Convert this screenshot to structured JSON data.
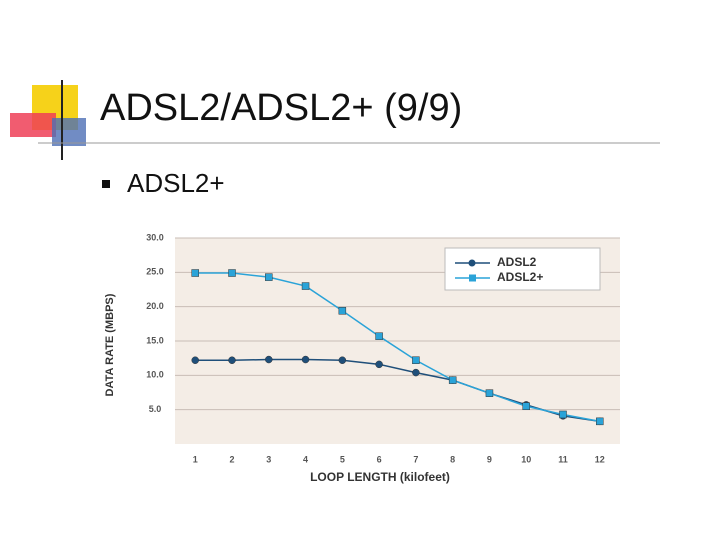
{
  "slide": {
    "title": "ADSL2/ADSL2+ (9/9)",
    "bullet": "ADSL2+"
  },
  "chart_data": {
    "type": "line",
    "x_label": "LOOP LENGTH (kilofeet)",
    "y_label": "DATA RATE (MBPS)",
    "x": [
      1,
      2,
      3,
      4,
      5,
      6,
      7,
      8,
      9,
      10,
      11,
      12
    ],
    "xlim": [
      0.45,
      12.55
    ],
    "xticks": [
      1,
      2,
      3,
      4,
      5,
      6,
      7,
      8,
      9,
      10,
      11,
      12
    ],
    "ylim": [
      0,
      30
    ],
    "yticks": [
      {
        "value": 5,
        "label": "5.0"
      },
      {
        "value": 10,
        "label": "10.0"
      },
      {
        "value": 15,
        "label": "15.0"
      },
      {
        "value": 20,
        "label": "20.0"
      },
      {
        "value": 25,
        "label": "25.0"
      },
      {
        "value": 30,
        "label": "30.0"
      }
    ],
    "grid": true,
    "legend": "upper right",
    "series": [
      {
        "name": "ADSL2",
        "color": "#1f4f7a",
        "marker": "circle",
        "values": [
          12.2,
          12.2,
          12.3,
          12.3,
          12.2,
          11.6,
          10.4,
          9.3,
          7.4,
          5.7,
          4.1,
          3.3
        ]
      },
      {
        "name": "ADSL2+",
        "color": "#2aa3d8",
        "marker": "square",
        "values": [
          24.9,
          24.9,
          24.3,
          23.0,
          19.4,
          15.7,
          12.2,
          9.3,
          7.4,
          5.5,
          4.3,
          3.3
        ]
      }
    ]
  }
}
